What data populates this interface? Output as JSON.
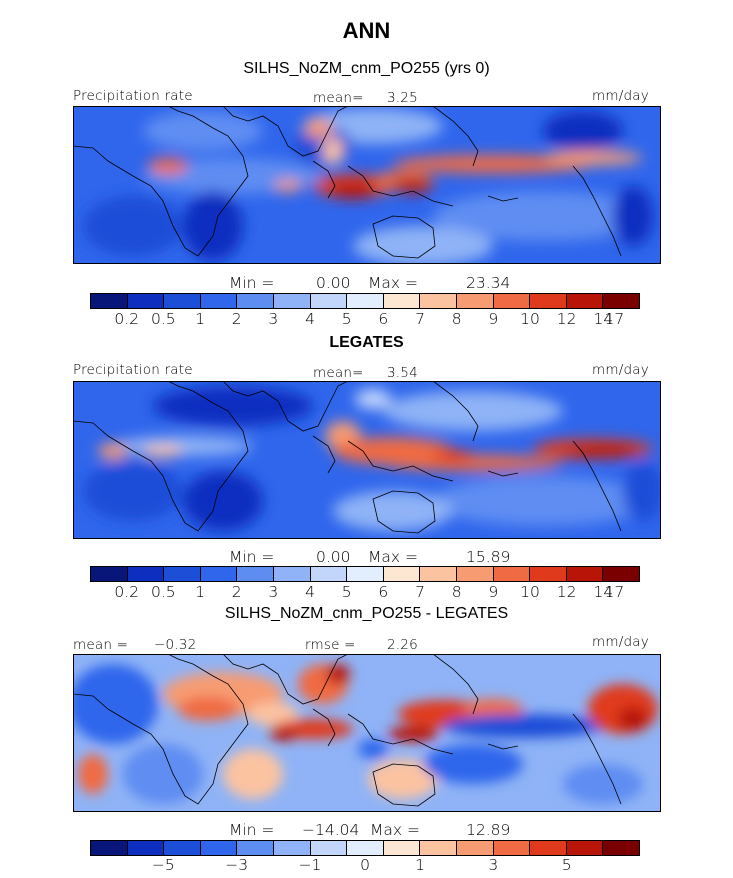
{
  "title": "ANN",
  "colors": {
    "sequential": [
      "#08167a",
      "#0e2ec0",
      "#1c4ed8",
      "#2f66ec",
      "#5e8df2",
      "#8fb3f6",
      "#c2d6fb",
      "#e2eefd",
      "#fde6d2",
      "#fcc3a0",
      "#f79b72",
      "#f06a43",
      "#e03a1c",
      "#b81408",
      "#7a0000"
    ],
    "land_outline": "#000000"
  },
  "panels": [
    {
      "id": "model",
      "title": "SILHS_NoZM_cnm_PO255 (yrs 0)",
      "left_label": "Precipitation rate",
      "center_label": "mean=",
      "center_value": "3.25",
      "right_label": "mm/day",
      "min_label": "Min =",
      "min_value": "0.00",
      "max_label": "Max =",
      "max_value": "23.34",
      "colorbar_ticks": [
        "0.2",
        "0.5",
        "1",
        "2",
        "3",
        "4",
        "5",
        "6",
        "7",
        "8",
        "9",
        "10",
        "12",
        "14",
        "17"
      ]
    },
    {
      "id": "obs",
      "title": "LEGATES",
      "left_label": "Precipitation rate",
      "center_label": "mean=",
      "center_value": "3.54",
      "right_label": "mm/day",
      "min_label": "Min =",
      "min_value": "0.00",
      "max_label": "Max =",
      "max_value": "15.89",
      "colorbar_ticks": [
        "0.2",
        "0.5",
        "1",
        "2",
        "3",
        "4",
        "5",
        "6",
        "7",
        "8",
        "9",
        "10",
        "12",
        "14",
        "17"
      ]
    },
    {
      "id": "diff",
      "title": "SILHS_NoZM_cnm_PO255 - LEGATES",
      "left_label": "mean =",
      "left_value": "−0.32",
      "center_label": "rmse =",
      "center_value": "2.26",
      "right_label": "mm/day",
      "min_label": "Min =",
      "min_value": "−14.04",
      "max_label": "Max =",
      "max_value": "12.89",
      "colorbar_ticks": [
        "−5",
        "−3",
        "−1",
        "0",
        "1",
        "3",
        "5"
      ]
    }
  ]
}
